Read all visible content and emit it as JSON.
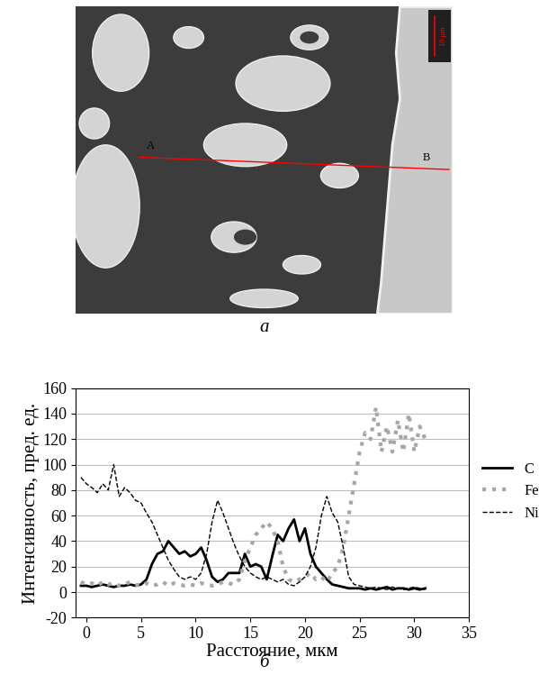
{
  "figure": {
    "panel_a": {
      "label": "а",
      "line_start": "A",
      "line_end": "B",
      "scale_bar": "10 μm"
    },
    "panel_b": {
      "label": "б"
    }
  },
  "chart_data": {
    "type": "line",
    "x_label": "Расстояние, мкм",
    "y_label": "Интенсивность, пред. ед.",
    "x": [
      -0.5,
      0,
      0.5,
      1,
      1.5,
      2,
      2.5,
      3,
      3.5,
      4,
      4.5,
      5,
      5.5,
      6,
      6.5,
      7,
      7.5,
      8,
      8.5,
      9,
      9.5,
      10,
      10.5,
      11,
      11.5,
      12,
      12.5,
      13,
      13.5,
      14,
      14.5,
      15,
      15.5,
      16,
      16.5,
      17,
      17.5,
      18,
      18.5,
      19,
      19.5,
      20,
      20.5,
      21,
      21.5,
      22,
      22.5,
      23,
      23.5,
      24,
      24.5,
      25,
      25.5,
      26,
      26.5,
      27,
      27.5,
      28,
      28.5,
      29,
      29.5,
      30,
      30.5,
      31
    ],
    "series": [
      {
        "name": "C",
        "color": "#000000",
        "line_style": "solid",
        "values": [
          5,
          5,
          4,
          5,
          6,
          5,
          4,
          5,
          5,
          6,
          5,
          6,
          10,
          22,
          30,
          32,
          40,
          35,
          30,
          32,
          28,
          30,
          35,
          25,
          12,
          8,
          10,
          15,
          15,
          15,
          30,
          20,
          22,
          20,
          10,
          28,
          45,
          40,
          50,
          57,
          40,
          50,
          30,
          20,
          15,
          10,
          6,
          5,
          4,
          3,
          3,
          3,
          2,
          3,
          2,
          3,
          4,
          2,
          3,
          3,
          2,
          3,
          2,
          3
        ]
      },
      {
        "name": "Fe",
        "color": "#a6a6a6",
        "line_style": "dotted",
        "values": [
          8,
          6,
          7,
          5,
          8,
          6,
          7,
          5,
          6,
          8,
          6,
          5,
          7,
          5,
          6,
          8,
          5,
          7,
          6,
          5,
          6,
          5,
          7,
          6,
          5,
          6,
          8,
          7,
          6,
          10,
          25,
          35,
          45,
          50,
          55,
          50,
          40,
          20,
          10,
          8,
          10,
          12,
          15,
          10,
          12,
          8,
          15,
          20,
          35,
          60,
          85,
          110,
          125,
          120,
          145,
          110,
          130,
          110,
          135,
          110,
          140,
          110,
          130,
          120
        ]
      },
      {
        "name": "Ni",
        "color": "#000000",
        "line_style": "dashed",
        "values": [
          90,
          85,
          82,
          78,
          85,
          80,
          100,
          75,
          82,
          78,
          72,
          70,
          62,
          55,
          45,
          35,
          25,
          18,
          12,
          10,
          12,
          10,
          15,
          30,
          55,
          72,
          62,
          50,
          38,
          28,
          20,
          15,
          12,
          10,
          12,
          10,
          8,
          10,
          6,
          5,
          8,
          12,
          20,
          35,
          60,
          75,
          62,
          55,
          35,
          12,
          6,
          5,
          4,
          3,
          4,
          3,
          2,
          4,
          3,
          2,
          3,
          4,
          3,
          2
        ]
      }
    ],
    "xlim": [
      -1,
      35
    ],
    "xticks": [
      0,
      5,
      10,
      15,
      20,
      25,
      30,
      35
    ],
    "ylim": [
      -20,
      160
    ],
    "yticks": [
      -20,
      0,
      20,
      40,
      60,
      80,
      100,
      120,
      140,
      160
    ],
    "grid": true,
    "legend": "right"
  }
}
